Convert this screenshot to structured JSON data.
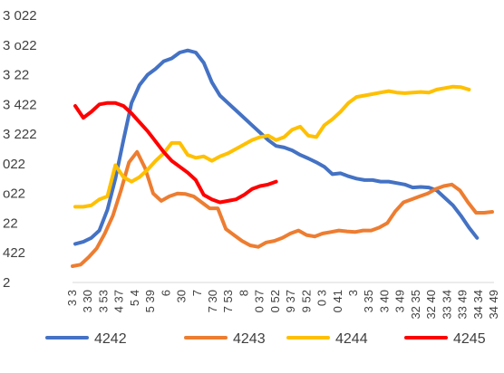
{
  "chart_data": {
    "type": "line",
    "title": "",
    "xlabel": "",
    "ylabel": "",
    "ylim": [
      0,
      9
    ],
    "y_tick_values": [
      0,
      1,
      2,
      3,
      4,
      5,
      6,
      7,
      8,
      9
    ],
    "y_tick_labels": [
      "2",
      "422",
      "22",
      "o22",
      "022",
      "3 222",
      "3 422",
      "3  22",
      "3 o22",
      "3 022"
    ],
    "x_tick_labels": [
      "3 3",
      "3 30",
      "3 53",
      "4 37",
      "5 4",
      "5 39",
      "6",
      "30",
      "7",
      "7 30",
      "7 53",
      "8",
      "0 37",
      "0 52",
      "9 37",
      "9 52",
      "0 3",
      "0 41",
      "3",
      "3 35",
      "3 40",
      "3 49",
      "32 35",
      "32 40",
      "33 34",
      "33 49",
      "34 34",
      "34 49"
    ],
    "grid": false,
    "legend_position": "bottom",
    "series": [
      {
        "name": "4242",
        "color": "#4472C4",
        "values": [
          1.3,
          1.37,
          1.5,
          1.75,
          2.45,
          3.5,
          4.8,
          6.05,
          6.65,
          7.0,
          7.2,
          7.45,
          7.55,
          7.75,
          7.82,
          7.75,
          7.4,
          6.75,
          6.3,
          6.05,
          5.8,
          5.55,
          5.3,
          5.05,
          4.8,
          4.6,
          4.55,
          4.45,
          4.3,
          4.18,
          4.05,
          3.9,
          3.65,
          3.68,
          3.58,
          3.5,
          3.45,
          3.45,
          3.4,
          3.4,
          3.35,
          3.3,
          3.2,
          3.22,
          3.2,
          3.1,
          2.85,
          2.6,
          2.25,
          1.85,
          1.5
        ]
      },
      {
        "name": "4243",
        "color": "#ED7D31",
        "values": [
          0.55,
          0.6,
          0.85,
          1.15,
          1.65,
          2.25,
          3.1,
          4.05,
          4.4,
          3.85,
          3.0,
          2.75,
          2.9,
          3.0,
          2.98,
          2.9,
          2.7,
          2.5,
          2.5,
          1.8,
          1.6,
          1.4,
          1.25,
          1.2,
          1.35,
          1.4,
          1.5,
          1.65,
          1.75,
          1.6,
          1.55,
          1.65,
          1.7,
          1.75,
          1.72,
          1.7,
          1.75,
          1.75,
          1.85,
          2.0,
          2.4,
          2.7,
          2.8,
          2.9,
          3.0,
          3.15,
          3.25,
          3.3,
          3.1,
          2.7,
          2.35,
          2.35,
          2.38
        ]
      },
      {
        "name": "4244",
        "color": "#FFC000",
        "values": [
          2.55,
          2.55,
          2.6,
          2.8,
          2.9,
          3.95,
          3.55,
          3.4,
          3.55,
          3.8,
          4.1,
          4.35,
          4.7,
          4.7,
          4.3,
          4.2,
          4.25,
          4.1,
          4.25,
          4.35,
          4.5,
          4.65,
          4.8,
          4.9,
          4.95,
          4.8,
          4.9,
          5.15,
          5.25,
          4.95,
          4.9,
          5.3,
          5.5,
          5.75,
          6.05,
          6.25,
          6.3,
          6.35,
          6.4,
          6.45,
          6.4,
          6.38,
          6.4,
          6.42,
          6.4,
          6.5,
          6.55,
          6.6,
          6.58,
          6.5
        ]
      },
      {
        "name": "4245",
        "color": "#FF0000",
        "values": [
          5.95,
          5.55,
          5.75,
          6.0,
          6.05,
          6.05,
          5.95,
          5.7,
          5.4,
          5.1,
          4.75,
          4.4,
          4.1,
          3.9,
          3.7,
          3.45,
          2.95,
          2.8,
          2.7,
          2.75,
          2.8,
          2.95,
          3.15,
          3.25,
          3.3,
          3.4
        ]
      }
    ]
  }
}
